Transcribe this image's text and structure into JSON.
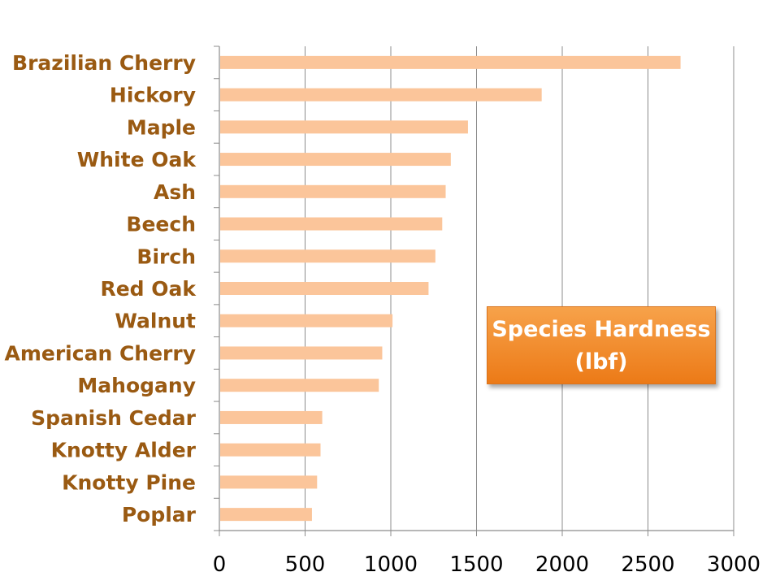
{
  "chart_data": {
    "type": "bar",
    "orientation": "horizontal",
    "categories": [
      "Brazilian Cherry",
      "Hickory",
      "Maple",
      "White Oak",
      "Ash",
      "Beech",
      "Birch",
      "Red Oak",
      "Walnut",
      "American Cherry",
      "Mahogany",
      "Spanish Cedar",
      "Knotty Alder",
      "Knotty Pine",
      "Poplar"
    ],
    "values": [
      2690,
      1880,
      1450,
      1350,
      1320,
      1300,
      1260,
      1220,
      1010,
      950,
      930,
      600,
      590,
      570,
      540
    ],
    "title": "",
    "annotation_lines": [
      "Species Hardness",
      "(lbf)"
    ],
    "xlim": [
      0,
      3000
    ],
    "xticks": [
      "0",
      "500",
      "1000",
      "1500",
      "2000",
      "2500",
      "3000"
    ],
    "grid": "vertical",
    "bar_color": "#fbc59a",
    "label_color": "#9a5a12",
    "annotation_color": "#f08c2e"
  }
}
